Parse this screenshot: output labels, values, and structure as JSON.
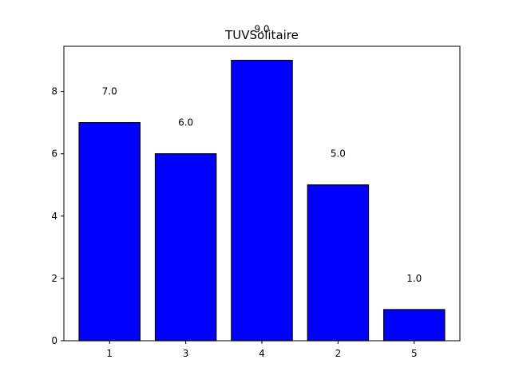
{
  "chart_data": {
    "type": "bar",
    "title": "TUVSolitaire",
    "xlabel": "",
    "ylabel": "",
    "categories": [
      "1",
      "3",
      "4",
      "2",
      "5"
    ],
    "values": [
      7,
      6,
      9,
      5,
      1
    ],
    "data_labels": [
      "7.0",
      "6.0",
      "9.0",
      "5.0",
      "1.0"
    ],
    "ylim": [
      0,
      9.45
    ],
    "yticks": [
      0,
      2,
      4,
      6,
      8
    ],
    "ytick_labels": [
      "0",
      "2",
      "4",
      "6",
      "8"
    ],
    "grid": false,
    "legend": "none",
    "colors": {
      "bar_fill": "#0000ff",
      "bar_edge": "#000000",
      "axes": "#000000",
      "background": "#ffffff"
    }
  }
}
